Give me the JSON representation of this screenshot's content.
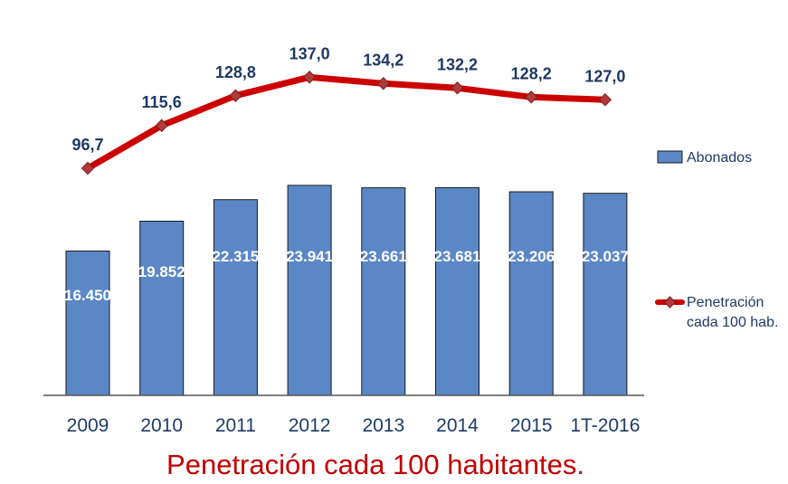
{
  "chart_data": {
    "type": "bar",
    "categories": [
      "2009",
      "2010",
      "2011",
      "2012",
      "2013",
      "2014",
      "2015",
      "1T-2016"
    ],
    "series": [
      {
        "name": "Abonados",
        "type": "bar",
        "values": [
          16450,
          19852,
          22315,
          23941,
          23661,
          23681,
          23206,
          23037
        ],
        "labels": [
          "16.450",
          "19.852",
          "22.315",
          "23.941",
          "23.661",
          "23.681",
          "23.206",
          "23.037"
        ],
        "color": "#5b87c6"
      },
      {
        "name": "Penetración cada 100 hab.",
        "type": "line",
        "values": [
          96.7,
          115.6,
          128.8,
          137.0,
          134.2,
          132.2,
          128.2,
          127.0
        ],
        "labels": [
          "96,7",
          "115,6",
          "128,8",
          "137,0",
          "134,2",
          "132,2",
          "128,2",
          "127,0"
        ],
        "color": "#cc0000"
      }
    ],
    "legend": {
      "position": "right",
      "items": [
        {
          "line1": "Abonados",
          "line2": ""
        },
        {
          "line1": "Penetración",
          "line2": "cada 100 hab."
        }
      ]
    },
    "caption": "Penetración cada 100 habitantes.",
    "grid": false
  },
  "colors": {
    "bar_fill": "#5b87c6",
    "bar_stroke": "#1a1a1a",
    "line": "#cc0000",
    "marker": "#b43a3a",
    "caption": "#c00000"
  }
}
